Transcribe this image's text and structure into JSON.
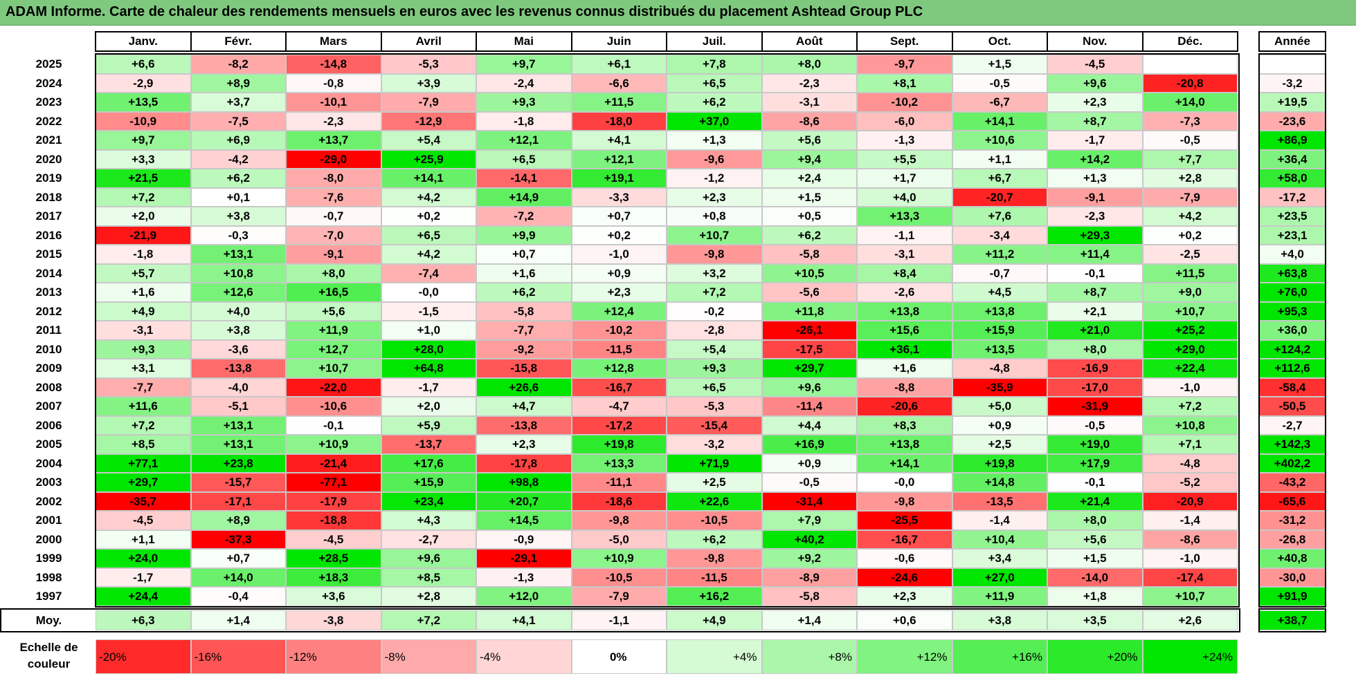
{
  "title": "ADAM Informe. Carte de chaleur des rendements mensuels en euros avec les revenus connus distribués du placement Ashtead Group PLC",
  "chart_data": {
    "type": "heatmap",
    "title": "ADAM Informe. Carte de chaleur des rendements mensuels en euros avec les revenus connus distribués du placement Ashtead Group PLC",
    "months": [
      "Janv.",
      "Févr.",
      "Mars",
      "Avril",
      "Mai",
      "Juin",
      "Juil.",
      "Août",
      "Sept.",
      "Oct.",
      "Nov.",
      "Déc."
    ],
    "year_header": "Année",
    "rows": [
      {
        "year": "2025",
        "values": [
          "+6,6",
          "-8,2",
          "-14,8",
          "-5,3",
          "+9,7",
          "+6,1",
          "+7,8",
          "+8,0",
          "-9,7",
          "+1,5",
          "-4,5",
          ""
        ],
        "annual": ""
      },
      {
        "year": "2024",
        "values": [
          "-2,9",
          "+8,9",
          "-0,8",
          "+3,9",
          "-2,4",
          "-6,6",
          "+6,5",
          "-2,3",
          "+8,1",
          "-0,5",
          "+9,6",
          "-20,8"
        ],
        "annual": "-3,2"
      },
      {
        "year": "2023",
        "values": [
          "+13,5",
          "+3,7",
          "-10,1",
          "-7,9",
          "+9,3",
          "+11,5",
          "+6,2",
          "-3,1",
          "-10,2",
          "-6,7",
          "+2,3",
          "+14,0"
        ],
        "annual": "+19,5"
      },
      {
        "year": "2022",
        "values": [
          "-10,9",
          "-7,5",
          "-2,3",
          "-12,9",
          "-1,8",
          "-18,0",
          "+37,0",
          "-8,6",
          "-6,0",
          "+14,1",
          "+8,7",
          "-7,3"
        ],
        "annual": "-23,6"
      },
      {
        "year": "2021",
        "values": [
          "+9,7",
          "+6,9",
          "+13,7",
          "+5,4",
          "+12,1",
          "+4,1",
          "+1,3",
          "+5,6",
          "-1,3",
          "+10,6",
          "-1,7",
          "-0,5"
        ],
        "annual": "+86,9"
      },
      {
        "year": "2020",
        "values": [
          "+3,3",
          "-4,2",
          "-29,0",
          "+25,9",
          "+6,5",
          "+12,1",
          "-9,6",
          "+9,4",
          "+5,5",
          "+1,1",
          "+14,2",
          "+7,7"
        ],
        "annual": "+36,4"
      },
      {
        "year": "2019",
        "values": [
          "+21,5",
          "+6,2",
          "-8,0",
          "+14,1",
          "-14,1",
          "+19,1",
          "-1,2",
          "+2,4",
          "+1,7",
          "+6,7",
          "+1,3",
          "+2,8"
        ],
        "annual": "+58,0"
      },
      {
        "year": "2018",
        "values": [
          "+7,2",
          "+0,1",
          "-7,6",
          "+4,2",
          "+14,9",
          "-3,3",
          "+2,3",
          "+1,5",
          "+4,0",
          "-20,7",
          "-9,1",
          "-7,9"
        ],
        "annual": "-17,2"
      },
      {
        "year": "2017",
        "values": [
          "+2,0",
          "+3,8",
          "-0,7",
          "+0,2",
          "-7,2",
          "+0,7",
          "+0,8",
          "+0,5",
          "+13,3",
          "+7,6",
          "-2,3",
          "+4,2"
        ],
        "annual": "+23,5"
      },
      {
        "year": "2016",
        "values": [
          "-21,9",
          "-0,3",
          "-7,0",
          "+6,5",
          "+9,9",
          "+0,2",
          "+10,7",
          "+6,2",
          "-1,1",
          "-3,4",
          "+29,3",
          "+0,2"
        ],
        "annual": "+23,1"
      },
      {
        "year": "2015",
        "values": [
          "-1,8",
          "+13,1",
          "-9,1",
          "+4,2",
          "+0,7",
          "-1,0",
          "-9,8",
          "-5,8",
          "-3,1",
          "+11,2",
          "+11,4",
          "-2,5"
        ],
        "annual": "+4,0"
      },
      {
        "year": "2014",
        "values": [
          "+5,7",
          "+10,8",
          "+8,0",
          "-7,4",
          "+1,6",
          "+0,9",
          "+3,2",
          "+10,5",
          "+8,4",
          "-0,7",
          "-0,1",
          "+11,5"
        ],
        "annual": "+63,8"
      },
      {
        "year": "2013",
        "values": [
          "+1,6",
          "+12,6",
          "+16,5",
          "-0,0",
          "+6,2",
          "+2,3",
          "+7,2",
          "-5,6",
          "-2,6",
          "+4,5",
          "+8,7",
          "+9,0"
        ],
        "annual": "+76,0"
      },
      {
        "year": "2012",
        "values": [
          "+4,9",
          "+4,0",
          "+5,6",
          "-1,5",
          "-5,8",
          "+12,4",
          "-0,2",
          "+11,8",
          "+13,8",
          "+13,8",
          "+2,1",
          "+10,7"
        ],
        "annual": "+95,3"
      },
      {
        "year": "2011",
        "values": [
          "-3,1",
          "+3,8",
          "+11,9",
          "+1,0",
          "-7,7",
          "-10,2",
          "-2,8",
          "-26,1",
          "+15,6",
          "+15,9",
          "+21,0",
          "+25,2"
        ],
        "annual": "+36,0"
      },
      {
        "year": "2010",
        "values": [
          "+9,3",
          "-3,6",
          "+12,7",
          "+28,0",
          "-9,2",
          "-11,5",
          "+5,4",
          "-17,5",
          "+36,1",
          "+13,5",
          "+8,0",
          "+29,0"
        ],
        "annual": "+124,2"
      },
      {
        "year": "2009",
        "values": [
          "+3,1",
          "-13,8",
          "+10,7",
          "+64,8",
          "-15,8",
          "+12,8",
          "+9,3",
          "+29,7",
          "+1,6",
          "-4,8",
          "-16,9",
          "+22,4"
        ],
        "annual": "+112,6"
      },
      {
        "year": "2008",
        "values": [
          "-7,7",
          "-4,0",
          "-22,0",
          "-1,7",
          "+26,6",
          "-16,7",
          "+6,5",
          "+9,6",
          "-8,8",
          "-35,9",
          "-17,0",
          "-1,0"
        ],
        "annual": "-58,4"
      },
      {
        "year": "2007",
        "values": [
          "+11,6",
          "-5,1",
          "-10,6",
          "+2,0",
          "+4,7",
          "-4,7",
          "-5,3",
          "-11,4",
          "-20,6",
          "+5,0",
          "-31,9",
          "+7,2"
        ],
        "annual": "-50,5"
      },
      {
        "year": "2006",
        "values": [
          "+7,2",
          "+13,1",
          "-0,1",
          "+5,9",
          "-13,8",
          "-17,2",
          "-15,4",
          "+4,4",
          "+8,3",
          "+0,9",
          "-0,5",
          "+10,8"
        ],
        "annual": "-2,7"
      },
      {
        "year": "2005",
        "values": [
          "+8,5",
          "+13,1",
          "+10,9",
          "-13,7",
          "+2,3",
          "+19,8",
          "-3,2",
          "+16,9",
          "+13,8",
          "+2,5",
          "+19,0",
          "+7,1"
        ],
        "annual": "+142,3"
      },
      {
        "year": "2004",
        "values": [
          "+77,1",
          "+23,8",
          "-21,4",
          "+17,6",
          "-17,8",
          "+13,3",
          "+71,9",
          "+0,9",
          "+14,1",
          "+19,8",
          "+17,9",
          "-4,8"
        ],
        "annual": "+402,2"
      },
      {
        "year": "2003",
        "values": [
          "+29,7",
          "-15,7",
          "-77,1",
          "+15,9",
          "+98,8",
          "-11,1",
          "+2,5",
          "-0,5",
          "-0,0",
          "+14,8",
          "-0,1",
          "-5,2"
        ],
        "annual": "-43,2"
      },
      {
        "year": "2002",
        "values": [
          "-35,7",
          "-17,1",
          "-17,9",
          "+23,4",
          "+20,7",
          "-18,6",
          "+22,6",
          "-31,4",
          "-9,8",
          "-13,5",
          "+21,4",
          "-20,9"
        ],
        "annual": "-65,6"
      },
      {
        "year": "2001",
        "values": [
          "-4,5",
          "+8,9",
          "-18,8",
          "+4,3",
          "+14,5",
          "-9,8",
          "-10,5",
          "+7,9",
          "-25,5",
          "-1,4",
          "+8,0",
          "-1,4"
        ],
        "annual": "-31,2"
      },
      {
        "year": "2000",
        "values": [
          "+1,1",
          "-37,3",
          "-4,5",
          "-2,7",
          "-0,9",
          "-5,0",
          "+6,2",
          "+40,2",
          "-16,7",
          "+10,4",
          "+5,6",
          "-8,6"
        ],
        "annual": "-26,8"
      },
      {
        "year": "1999",
        "values": [
          "+24,0",
          "+0,7",
          "+28,5",
          "+9,6",
          "-29,1",
          "+10,9",
          "-9,8",
          "+9,2",
          "-0,6",
          "+3,4",
          "+1,5",
          "-1,0"
        ],
        "annual": "+40,8"
      },
      {
        "year": "1998",
        "values": [
          "-1,7",
          "+14,0",
          "+18,3",
          "+8,5",
          "-1,3",
          "-10,5",
          "-11,5",
          "-8,9",
          "-24,6",
          "+27,0",
          "-14,0",
          "-17,4"
        ],
        "annual": "-30,0"
      },
      {
        "year": "1997",
        "values": [
          "+24,4",
          "-0,4",
          "+3,6",
          "+2,8",
          "+12,0",
          "-7,9",
          "+16,2",
          "-5,8",
          "+2,3",
          "+11,9",
          "+1,8",
          "+10,7"
        ],
        "annual": "+91,9"
      }
    ],
    "average": {
      "label": "Moy.",
      "values": [
        "+6,3",
        "+1,4",
        "-3,8",
        "+7,2",
        "+4,1",
        "-1,1",
        "+4,9",
        "+1,4",
        "+0,6",
        "+3,8",
        "+3,5",
        "+2,6"
      ],
      "annual": "+38,7"
    },
    "scale": {
      "label": "Echelle de couleur",
      "items": [
        "-20%",
        "-16%",
        "-12%",
        "-8%",
        "-4%",
        "0%",
        "+4%",
        "+8%",
        "+12%",
        "+16%",
        "+20%",
        "+24%"
      ]
    },
    "colors": {
      "negative": "#ff0000",
      "positive": "#00e600",
      "neutral": "#ffffff",
      "title_bg": "#7fc97f"
    }
  }
}
